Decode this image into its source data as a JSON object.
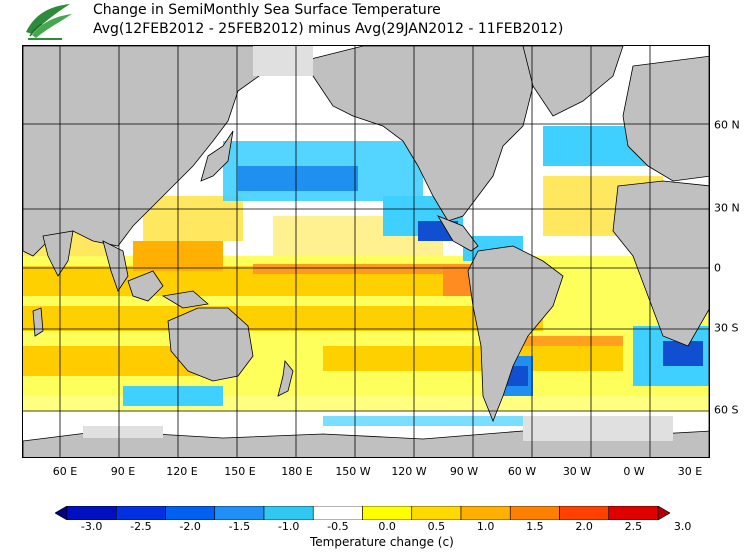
{
  "title_line1": "Change in SemiMonthly Sea Surface Temperature",
  "title_line2": "Avg(12FEB2012 - 25FEB2012) minus Avg(29JAN2012 - 11FEB2012)",
  "longitude_labels": [
    "60 E",
    "90 E",
    "120 E",
    "150 E",
    "180 E",
    "150 W",
    "120 W",
    "90 W",
    "60 W",
    "30 W",
    "0 W",
    "30 E"
  ],
  "latitude_labels": [
    "60 N",
    "30 N",
    "0",
    "30 S",
    "60 S"
  ],
  "colorbar": {
    "label": "Temperature change  (c)",
    "ticks": [
      "-3.0",
      "-2.5",
      "-2.0",
      "-1.5",
      "-1.0",
      "-0.5",
      "0.0",
      "0.5",
      "1.0",
      "1.5",
      "2.0",
      "2.5",
      "3.0"
    ],
    "colors": [
      "#000080",
      "#0010c0",
      "#0030e0",
      "#0060f0",
      "#2090f8",
      "#30c8f0",
      "#ffffff",
      "#ffff00",
      "#ffd800",
      "#ffb000",
      "#ff8000",
      "#ff4000",
      "#e00000",
      "#b00000"
    ]
  },
  "colors": {
    "land": "#c0c0c0",
    "ice": "#e0e0e0",
    "ocean_neutral": "#ffffff",
    "warm_light": "#ffff30",
    "warm_mid": "#ffd000",
    "warm_strong": "#ff8c20",
    "cool_light": "#40d0ff",
    "cool_mid": "#2090f0",
    "cool_strong": "#1050d0"
  }
}
